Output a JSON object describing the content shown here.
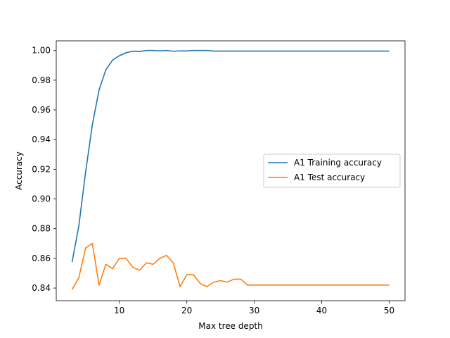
{
  "chart_data": {
    "type": "line",
    "xlabel": "Max tree depth",
    "ylabel": "Accuracy",
    "xlim": [
      0.65,
      52.35
    ],
    "ylim": [
      0.8315,
      1.0065
    ],
    "xticks": [
      10,
      20,
      30,
      40,
      50
    ],
    "xtick_labels": [
      "10",
      "20",
      "30",
      "40",
      "50"
    ],
    "yticks": [
      0.84,
      0.86,
      0.88,
      0.9,
      0.92,
      0.94,
      0.96,
      0.98,
      1.0
    ],
    "ytick_labels": [
      "0.84",
      "0.86",
      "0.88",
      "0.90",
      "0.92",
      "0.94",
      "0.96",
      "0.98",
      "1.00"
    ],
    "grid": false,
    "legend_position": "center-right",
    "x": [
      3,
      4,
      5,
      6,
      7,
      8,
      9,
      10,
      11,
      12,
      13,
      14,
      15,
      16,
      17,
      18,
      19,
      20,
      21,
      22,
      23,
      24,
      25,
      26,
      27,
      28,
      29,
      30,
      31,
      32,
      33,
      34,
      35,
      36,
      37,
      38,
      39,
      40,
      41,
      42,
      43,
      44,
      45,
      46,
      47,
      48,
      49,
      50
    ],
    "series": [
      {
        "name": "A1 Training accuracy",
        "color": "#1f77b4",
        "values": [
          0.8575,
          0.882,
          0.918,
          0.95,
          0.9735,
          0.987,
          0.9935,
          0.9965,
          0.9985,
          0.9995,
          0.9993,
          1.0,
          1.0,
          0.9997,
          1.0,
          0.9995,
          0.9997,
          0.9997,
          1.0,
          1.0,
          1.0,
          0.9996,
          0.9996,
          0.9996,
          0.9996,
          0.9996,
          0.9996,
          0.9996,
          0.9996,
          0.9996,
          0.9996,
          0.9996,
          0.9996,
          0.9996,
          0.9996,
          0.9996,
          0.9996,
          0.9996,
          0.9996,
          0.9996,
          0.9996,
          0.9996,
          0.9996,
          0.9996,
          0.9996,
          0.9996,
          0.9996,
          0.9996
        ]
      },
      {
        "name": "A1 Test accuracy",
        "color": "#ff7f0e",
        "values": [
          0.839,
          0.847,
          0.867,
          0.87,
          0.842,
          0.856,
          0.853,
          0.86,
          0.86,
          0.854,
          0.852,
          0.857,
          0.856,
          0.86,
          0.862,
          0.857,
          0.841,
          0.849,
          0.849,
          0.843,
          0.841,
          0.844,
          0.845,
          0.844,
          0.846,
          0.846,
          0.842,
          0.842,
          0.842,
          0.842,
          0.842,
          0.842,
          0.842,
          0.842,
          0.842,
          0.842,
          0.842,
          0.842,
          0.842,
          0.842,
          0.842,
          0.842,
          0.842,
          0.842,
          0.842,
          0.842,
          0.842,
          0.842
        ]
      }
    ]
  }
}
